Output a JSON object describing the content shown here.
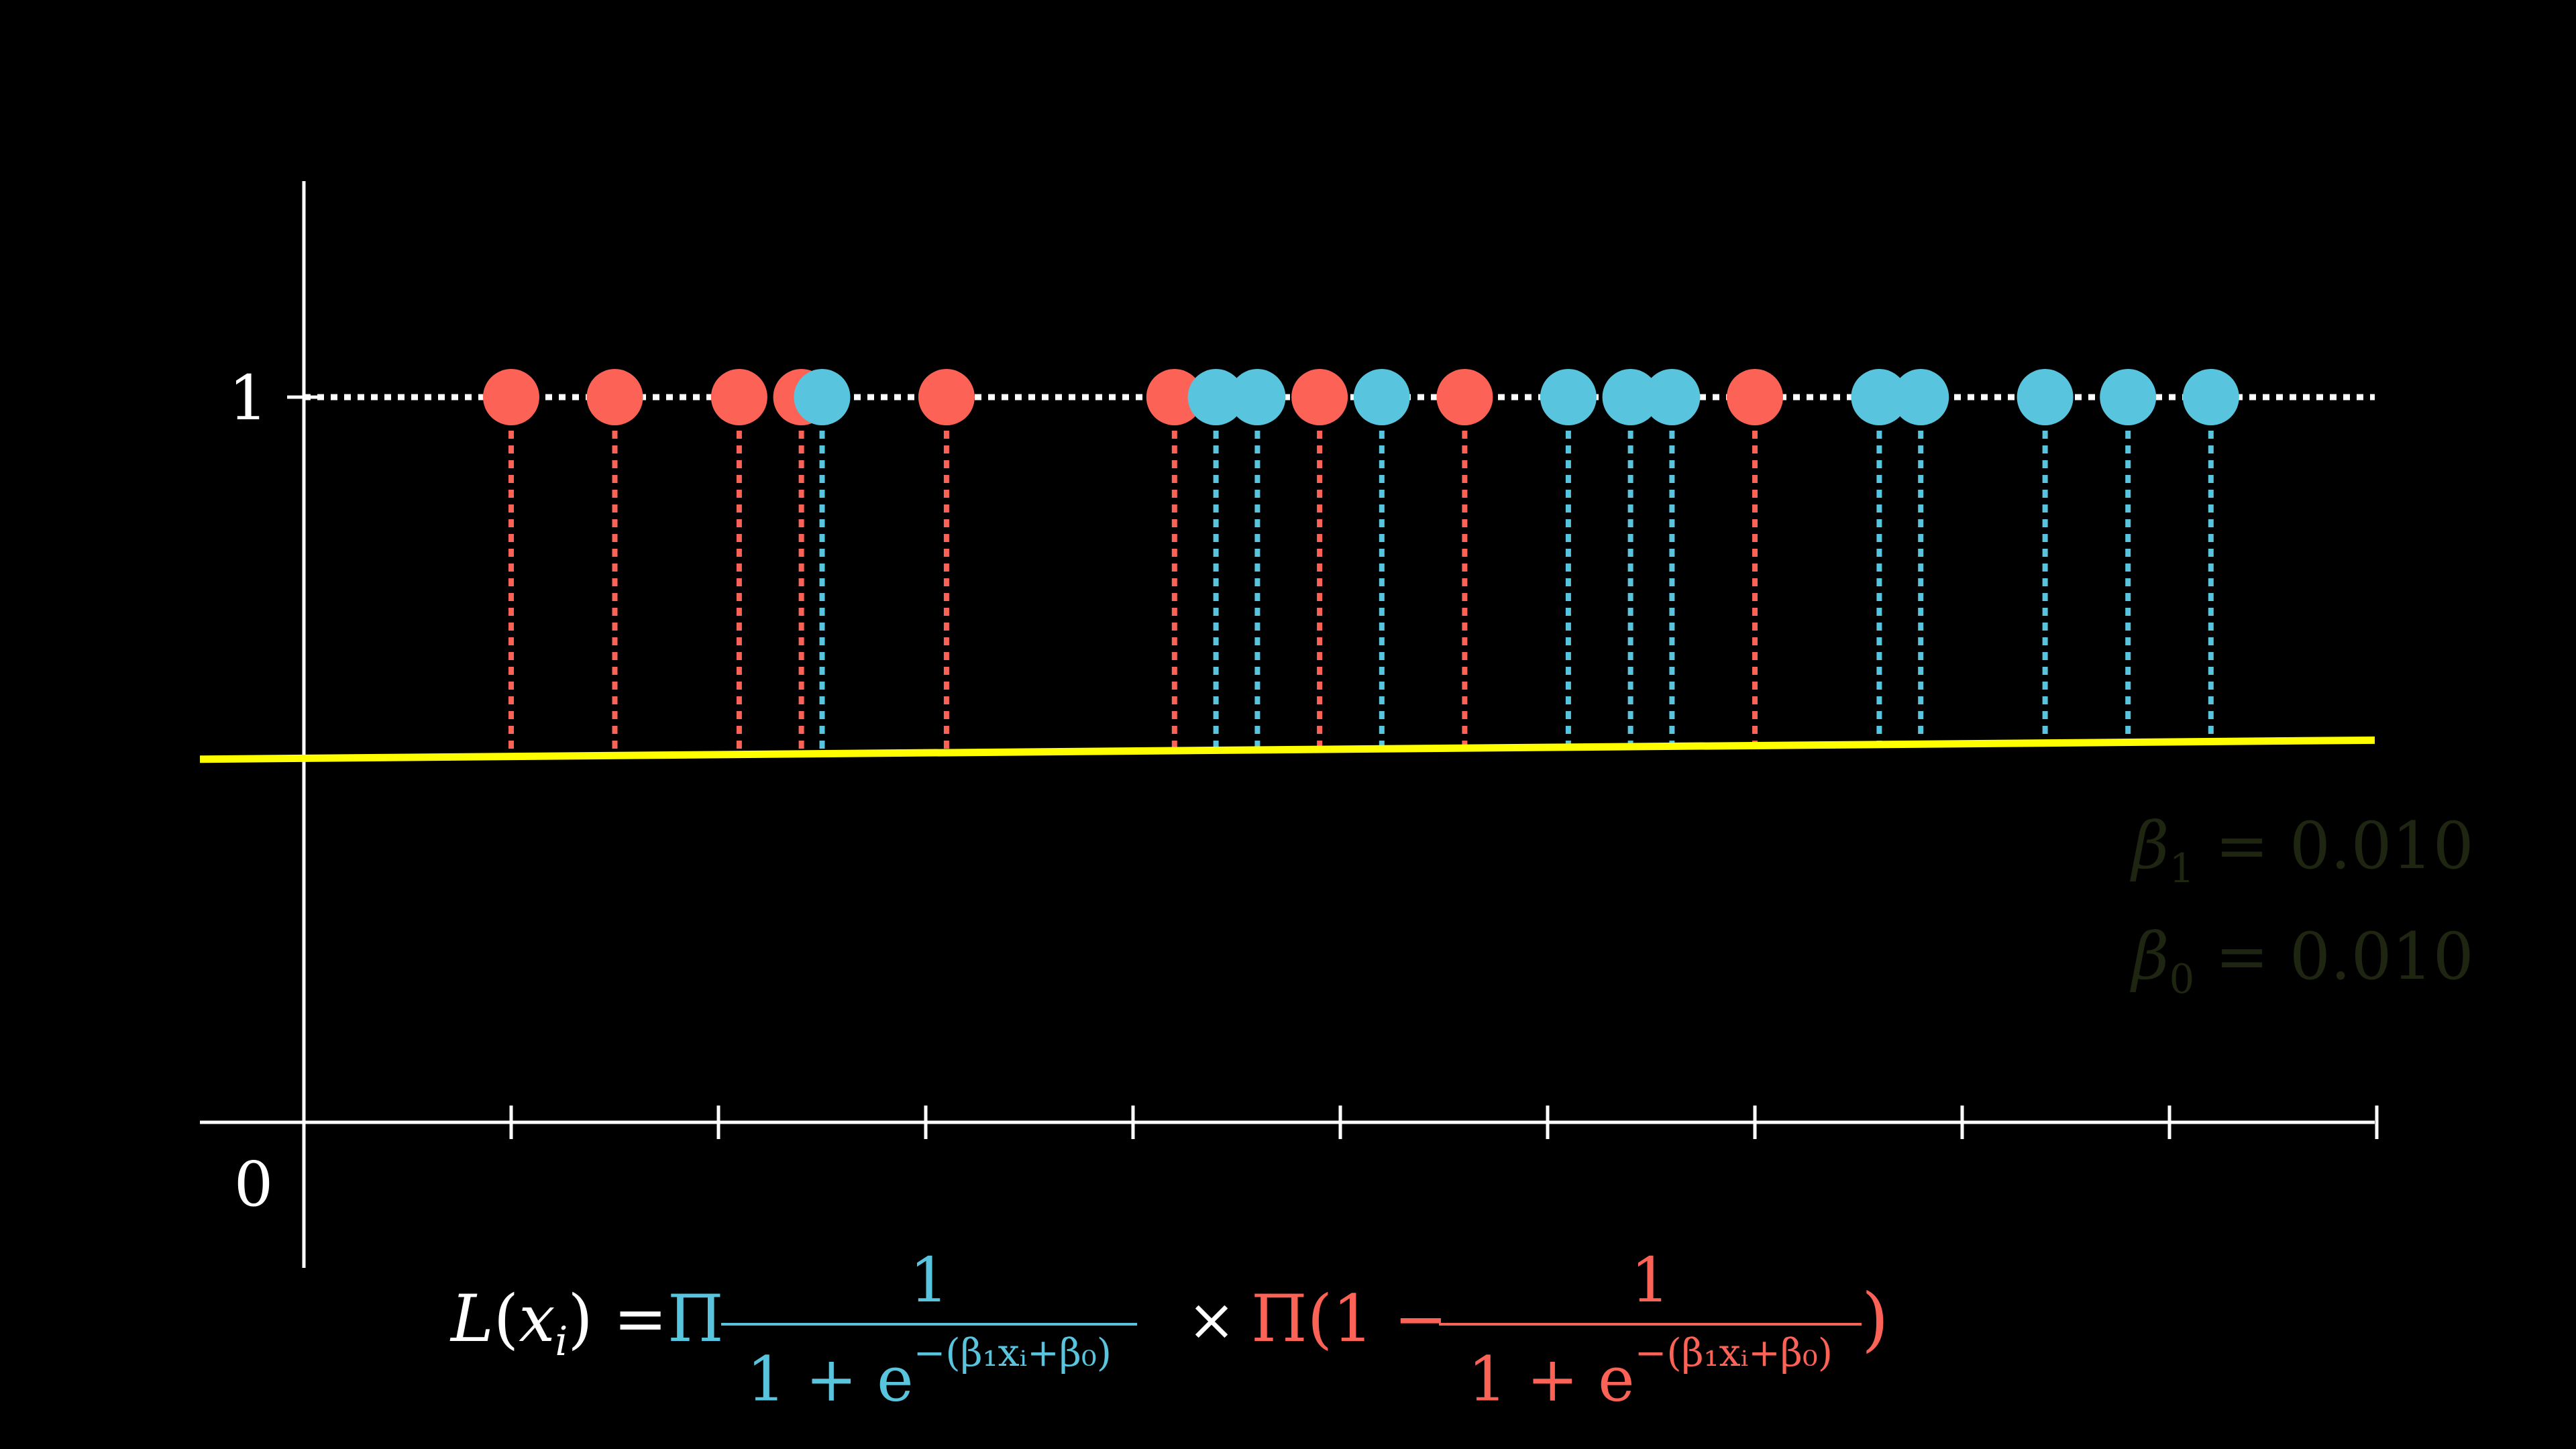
{
  "chart_data": {
    "type": "scatter",
    "y_tick_labels": [
      "0",
      "1"
    ],
    "ylim": [
      0,
      1
    ],
    "x_tick_count": 10,
    "points": [
      {
        "x": 1.0,
        "class": "red"
      },
      {
        "x": 1.5,
        "class": "red"
      },
      {
        "x": 2.1,
        "class": "red"
      },
      {
        "x": 2.4,
        "class": "red"
      },
      {
        "x": 2.5,
        "class": "blue"
      },
      {
        "x": 3.1,
        "class": "red"
      },
      {
        "x": 4.2,
        "class": "red"
      },
      {
        "x": 4.4,
        "class": "blue"
      },
      {
        "x": 4.6,
        "class": "blue"
      },
      {
        "x": 4.9,
        "class": "red"
      },
      {
        "x": 5.2,
        "class": "blue"
      },
      {
        "x": 5.6,
        "class": "red"
      },
      {
        "x": 6.1,
        "class": "blue"
      },
      {
        "x": 6.4,
        "class": "blue"
      },
      {
        "x": 6.6,
        "class": "blue"
      },
      {
        "x": 7.0,
        "class": "red"
      },
      {
        "x": 7.6,
        "class": "blue"
      },
      {
        "x": 7.8,
        "class": "blue"
      },
      {
        "x": 8.4,
        "class": "blue"
      },
      {
        "x": 8.8,
        "class": "blue"
      },
      {
        "x": 9.2,
        "class": "blue"
      }
    ],
    "fit_line": {
      "y_at_x0": 0.502,
      "y_at_x10": 0.527
    },
    "colors": {
      "red": "#FC6255",
      "blue": "#58C4DD",
      "fit": "#FFFF00",
      "axis": "#FFFFFF",
      "params": "#1E2510"
    }
  },
  "params": {
    "beta1_label": "β",
    "beta1_sub": "1",
    "beta1_value": "=  0.010",
    "beta0_label": "β",
    "beta0_sub": "0",
    "beta0_value": "=  0.010"
  },
  "equation": {
    "lhs_L": "L",
    "lhs_x": "x",
    "lhs_i": "i",
    "lhs_eq": ") =",
    "prod1": "Π",
    "frac1_num": "1",
    "frac1_den_base": "1 + e",
    "frac1_den_exp": "−(β₁xᵢ+β₀)",
    "times": "×",
    "prod2_open": "Π(1 −",
    "frac2_num": "1",
    "frac2_den_base": "1 + e",
    "frac2_den_exp": "−(β₁xᵢ+β₀)",
    "close": ")"
  }
}
